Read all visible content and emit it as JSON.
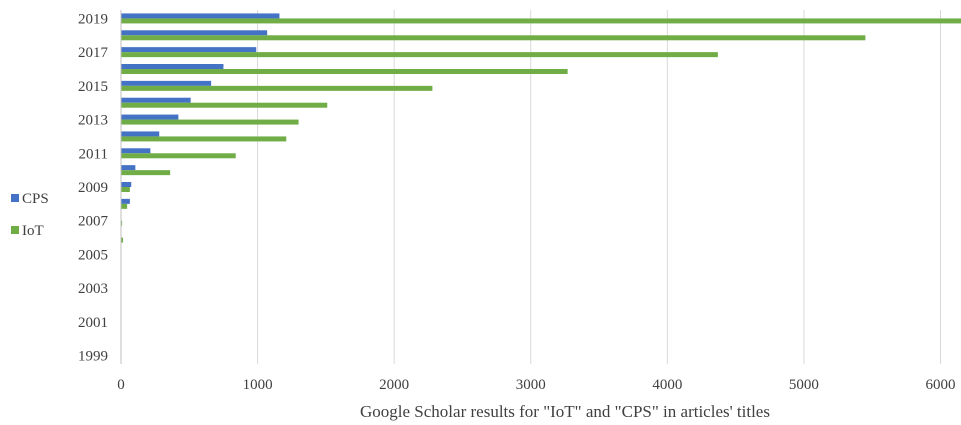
{
  "chart_data": {
    "type": "bar",
    "orientation": "horizontal",
    "categories": [
      "1999",
      "2000",
      "2001",
      "2002",
      "2003",
      "2004",
      "2005",
      "2006",
      "2007",
      "2008",
      "2009",
      "2010",
      "2011",
      "2012",
      "2013",
      "2014",
      "2015",
      "2016",
      "2017",
      "2018",
      "2019"
    ],
    "year_tick_labels": [
      "2019",
      "2017",
      "2015",
      "2013",
      "2011",
      "2009",
      "2007",
      "2005",
      "2003",
      "2001",
      "1999"
    ],
    "series": [
      {
        "name": "CPS",
        "color": "#4472C4",
        "values": [
          0,
          0,
          0,
          0,
          0,
          0,
          0,
          0,
          2,
          65,
          75,
          105,
          215,
          280,
          420,
          510,
          660,
          750,
          990,
          1070,
          1160
        ]
      },
      {
        "name": "IoT",
        "color": "#70AD47",
        "values": [
          0,
          0,
          0,
          0,
          0,
          0,
          0,
          15,
          8,
          45,
          65,
          360,
          840,
          1210,
          1300,
          1510,
          2280,
          3270,
          4370,
          5450,
          6150
        ]
      }
    ],
    "xlim": [
      0,
      6150
    ],
    "x_ticks": [
      0,
      1000,
      2000,
      3000,
      4000,
      5000,
      6000
    ],
    "xlabel": "Google Scholar results for \"IoT\" and \"CPS\" in articles' titles",
    "ylabel": "",
    "grid": "vertical",
    "legend": "left"
  }
}
